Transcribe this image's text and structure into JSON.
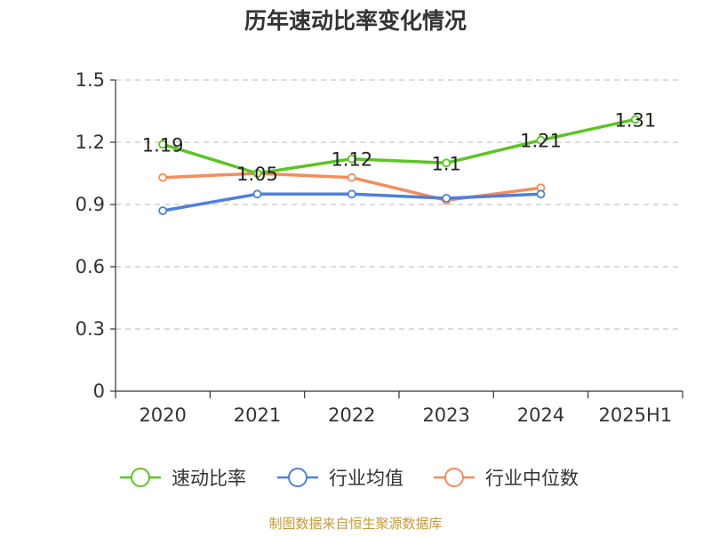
{
  "chart_data": {
    "type": "line",
    "title": "历年速动比率变化情况",
    "categories": [
      "2020",
      "2021",
      "2022",
      "2023",
      "2024",
      "2025H1"
    ],
    "ylim": [
      0,
      1.5
    ],
    "yticks": [
      "0",
      "0.3",
      "0.6",
      "0.9",
      "1.2",
      "1.5"
    ],
    "grid": true,
    "legend_position": "bottom",
    "series": [
      {
        "name": "速动比率",
        "color": "#5dc423",
        "values": [
          1.19,
          1.05,
          1.12,
          1.1,
          1.21,
          1.31
        ],
        "labels": [
          "1.19",
          "1.05",
          "1.12",
          "1.1",
          "1.21",
          "1.31"
        ],
        "show_labels": true
      },
      {
        "name": "行业均值",
        "color": "#4f7fdc",
        "values": [
          0.87,
          0.95,
          0.95,
          0.93,
          0.95,
          null
        ],
        "show_labels": false
      },
      {
        "name": "行业中位数",
        "color": "#f48c5c",
        "values": [
          1.03,
          1.05,
          1.03,
          0.92,
          0.98,
          null
        ],
        "show_labels": false
      }
    ]
  },
  "footer": {
    "source": "制图数据来自恒生聚源数据库"
  }
}
